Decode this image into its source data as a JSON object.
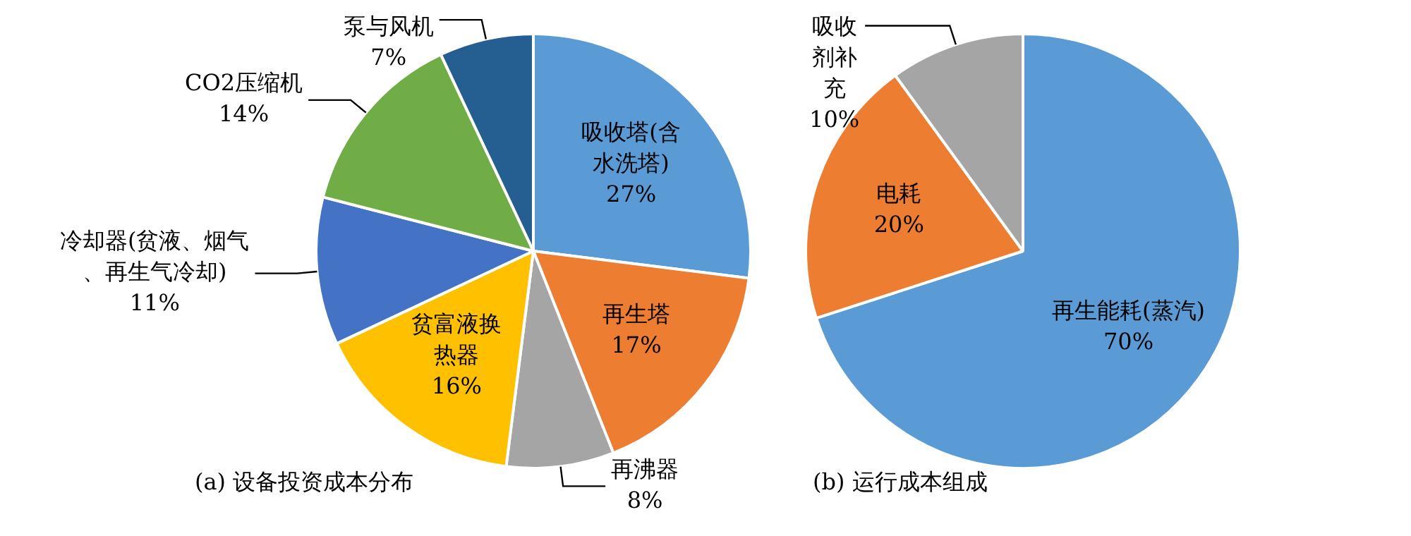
{
  "chart_data": [
    {
      "type": "pie",
      "title": "(a) 设备投资成本分布",
      "categories": [
        "吸收塔(含水洗塔)",
        "再生塔",
        "再沸器",
        "贫富液换热器",
        "冷却器(贫液、烟气、再生气冷却)",
        "CO2压缩机",
        "泵与风机"
      ],
      "values": [
        27,
        17,
        8,
        16,
        11,
        14,
        7
      ],
      "value_labels": [
        "27%",
        "17%",
        "8%",
        "16%",
        "11%",
        "14%",
        "7%"
      ],
      "colors": [
        "#5b9bd5",
        "#ed7d31",
        "#a5a5a5",
        "#ffc000",
        "#4472c4",
        "#70ad47",
        "#255e91"
      ],
      "legend": false
    },
    {
      "type": "pie",
      "title": "(b) 运行成本组成",
      "categories": [
        "再生能耗(蒸汽)",
        "电耗",
        "吸收剂补充"
      ],
      "values": [
        70,
        20,
        10
      ],
      "value_labels": [
        "70%",
        "20%",
        "10%"
      ],
      "colors": [
        "#5b9bd5",
        "#ed7d31",
        "#a5a5a5"
      ],
      "legend": false
    }
  ]
}
